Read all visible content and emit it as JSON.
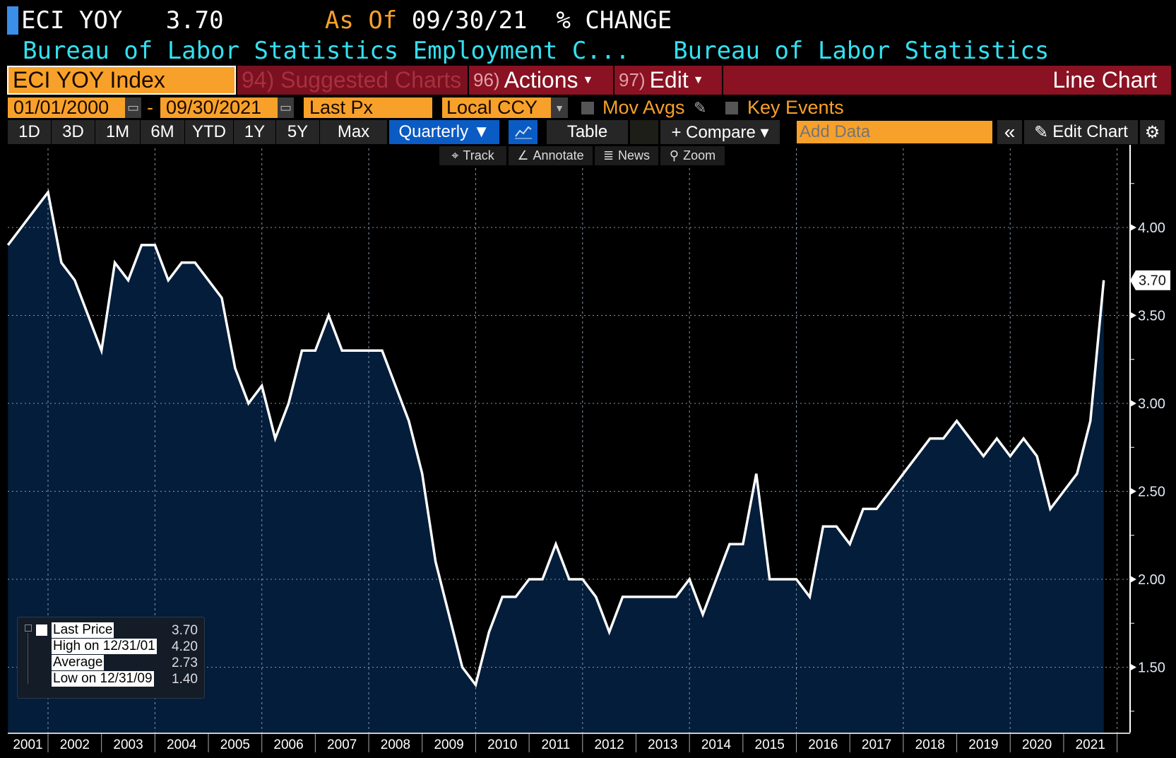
{
  "header": {
    "ticker": "ECI YOY",
    "last": "3.70",
    "as_of_label": "As Of",
    "as_of_date": "09/30/21",
    "unit": "% CHANGE",
    "description": "Bureau of Labor Statistics Employment C...",
    "source": "Bureau of Labor Statistics"
  },
  "toolbar": {
    "security": "ECI YOY Index",
    "suggested": "94) Suggested Charts",
    "actions_num": "96)",
    "actions": "Actions",
    "edit_num": "97)",
    "edit": "Edit",
    "chart_type": "Line Chart",
    "start_date": "01/01/2000",
    "dash": "-",
    "end_date": "09/30/2021",
    "field": "Last Px",
    "currency": "Local CCY",
    "mov_avgs": "Mov Avgs",
    "key_events": "Key Events",
    "periods": [
      "1D",
      "3D",
      "1M",
      "6M",
      "YTD",
      "1Y",
      "5Y",
      "Max"
    ],
    "frequency": "Quarterly ▼",
    "table": "Table",
    "compare": "+ Compare ▾",
    "add_data_placeholder": "Add Data",
    "collapse": "«",
    "edit_chart": "Edit Chart",
    "track": "Track",
    "annotate": "Annotate",
    "news": "News",
    "zoom": "Zoom"
  },
  "colors": {
    "line": "#ffffff",
    "fill": "#031d3a",
    "orange": "#f8a12a",
    "red": "#8a1222",
    "axis_text": "#f0c080",
    "cyan": "#33e0f0",
    "active_blue": "#0a5bc4"
  },
  "legend": {
    "last_label": "Last Price",
    "last_value": "3.70",
    "high_label": "High on 12/31/01",
    "high_value": "4.20",
    "avg_label": "Average",
    "avg_value": "2.73",
    "low_label": "Low on 12/31/09",
    "low_value": "1.40"
  },
  "chart_data": {
    "type": "area",
    "frequency": "quarterly",
    "x_start": "2001-Q1",
    "values": [
      3.9,
      4.0,
      4.1,
      4.2,
      3.8,
      3.7,
      3.5,
      3.3,
      3.8,
      3.7,
      3.9,
      3.9,
      3.7,
      3.8,
      3.8,
      3.7,
      3.6,
      3.2,
      3.0,
      3.1,
      2.8,
      3.0,
      3.3,
      3.3,
      3.5,
      3.3,
      3.3,
      3.3,
      3.3,
      3.1,
      2.9,
      2.6,
      2.1,
      1.8,
      1.5,
      1.4,
      1.7,
      1.9,
      1.9,
      2.0,
      2.0,
      2.2,
      2.0,
      2.0,
      1.9,
      1.7,
      1.9,
      1.9,
      1.9,
      1.9,
      1.9,
      2.0,
      1.8,
      2.0,
      2.2,
      2.2,
      2.6,
      2.0,
      2.0,
      2.0,
      1.9,
      2.3,
      2.3,
      2.2,
      2.4,
      2.4,
      2.5,
      2.6,
      2.7,
      2.8,
      2.8,
      2.9,
      2.8,
      2.7,
      2.8,
      2.7,
      2.8,
      2.7,
      2.4,
      2.5,
      2.6,
      2.9,
      3.7
    ],
    "x_tick_labels": [
      "2001",
      "2002",
      "2003",
      "2004",
      "2005",
      "2006",
      "2007",
      "2008",
      "2009",
      "2010",
      "2011",
      "2012",
      "2013",
      "2014",
      "2015",
      "2016",
      "2017",
      "2018",
      "2019",
      "2020",
      "2021"
    ],
    "y_tick_labels": [
      "4.00",
      "3.50",
      "3.00",
      "2.50",
      "2.00",
      "1.50"
    ],
    "y_ticks": [
      4.0,
      3.5,
      3.0,
      2.5,
      2.0,
      1.5
    ],
    "ylim": [
      1.25,
      4.5
    ],
    "last_value_label": "3.70",
    "grid": true,
    "legend_position": "bottom-left"
  }
}
